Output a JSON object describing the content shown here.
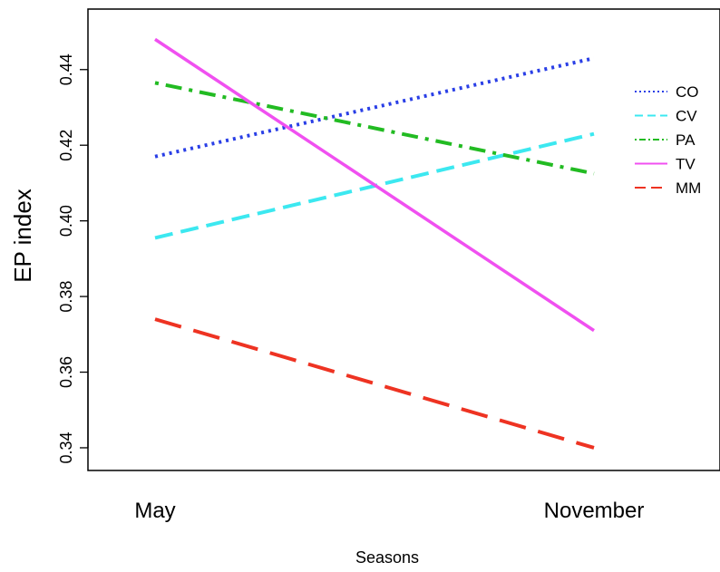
{
  "chart_data": {
    "type": "line",
    "title": "",
    "xlabel": "Seasons",
    "ylabel": "EP index",
    "categories": [
      "May",
      "November"
    ],
    "ylim": [
      0.334,
      0.456
    ],
    "yticks": [
      "0.34",
      "0.36",
      "0.38",
      "0.40",
      "0.42",
      "0.44"
    ],
    "legend_position": "right",
    "series": [
      {
        "name": "CO",
        "values": [
          0.417,
          0.443
        ],
        "color": "#2a3fe6",
        "style": "dotted"
      },
      {
        "name": "CV",
        "values": [
          0.3955,
          0.423
        ],
        "color": "#3ce8f0",
        "style": "dashed"
      },
      {
        "name": "PA",
        "values": [
          0.4365,
          0.4125
        ],
        "color": "#22bb22",
        "style": "dotdash"
      },
      {
        "name": "TV",
        "values": [
          0.448,
          0.371
        ],
        "color": "#f050f0",
        "style": "solid"
      },
      {
        "name": "MM",
        "values": [
          0.374,
          0.34
        ],
        "color": "#ee3322",
        "style": "longdash"
      }
    ]
  }
}
